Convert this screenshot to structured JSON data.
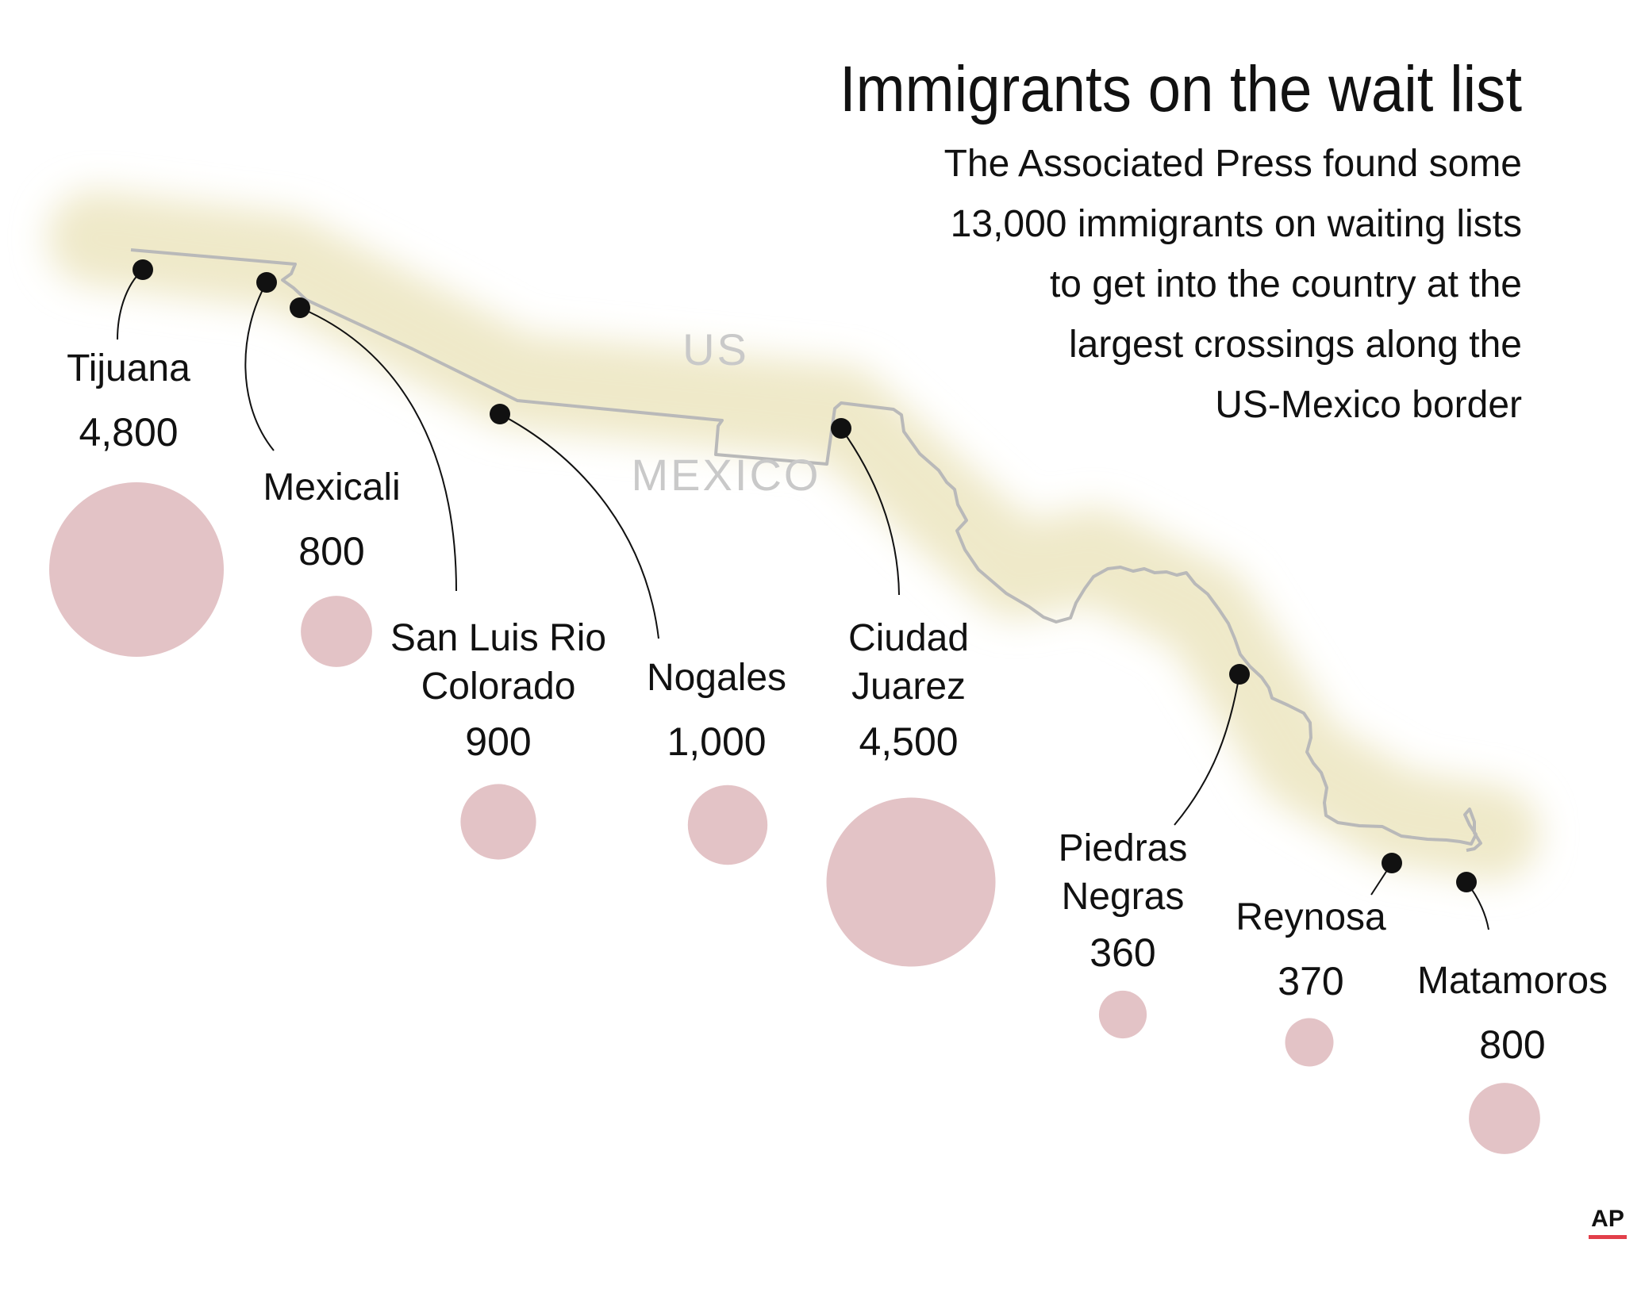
{
  "title": "Immigrants on the wait list",
  "subtitle": [
    "The Associated Press found some",
    "13,000 immigrants on waiting lists",
    "to get into the country at the",
    "largest crossings along the",
    "US-Mexico border"
  ],
  "countries": {
    "us": "US",
    "mexico": "MEXICO"
  },
  "credit": "AP",
  "colors": {
    "bubble": "#e3c3c6",
    "border_glow": "#efe9c9",
    "border_line": "#b9b9b9",
    "country_label": "#c9c9c9",
    "credit_bar": "#e23f4a"
  },
  "chart_data": {
    "type": "proportional-symbol map",
    "title": "Immigrants on the wait list",
    "unit": "immigrants on waiting lists",
    "total_label": "13,000",
    "crossings": [
      {
        "id": "tijuana",
        "name": [
          "Tijuana"
        ],
        "value": 4800,
        "label": "4,800"
      },
      {
        "id": "mexicali",
        "name": [
          "Mexicali"
        ],
        "value": 800,
        "label": "800"
      },
      {
        "id": "san-luis",
        "name": [
          "San Luis Rio",
          "Colorado"
        ],
        "value": 900,
        "label": "900"
      },
      {
        "id": "nogales",
        "name": [
          "Nogales"
        ],
        "value": 1000,
        "label": "1,000"
      },
      {
        "id": "juarez",
        "name": [
          "Ciudad",
          "Juarez"
        ],
        "value": 4500,
        "label": "4,500"
      },
      {
        "id": "piedras",
        "name": [
          "Piedras",
          "Negras"
        ],
        "value": 360,
        "label": "360"
      },
      {
        "id": "reynosa",
        "name": [
          "Reynosa"
        ],
        "value": 370,
        "label": "370"
      },
      {
        "id": "matamoros",
        "name": [
          "Matamoros"
        ],
        "value": 800,
        "label": "800"
      }
    ]
  }
}
